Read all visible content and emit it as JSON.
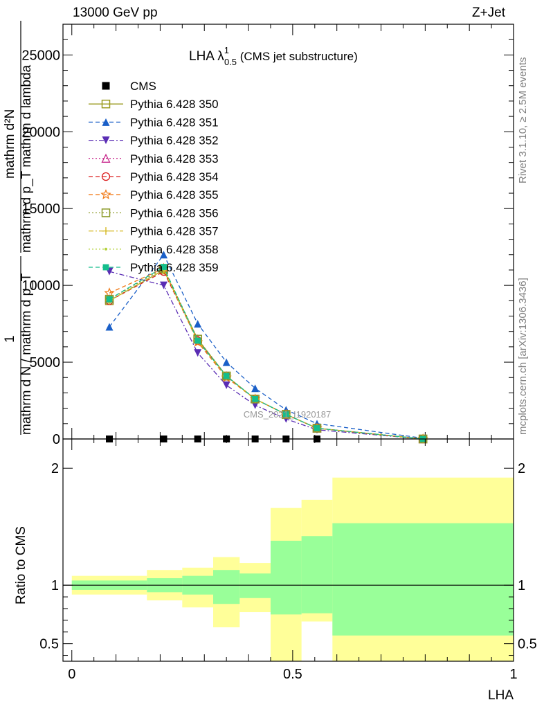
{
  "header": {
    "left": "13000 GeV pp",
    "right": "Z+Jet"
  },
  "side": {
    "rivet": "Rivet 3.1.10, ≥ 2.5M events",
    "mcplots": "mcplots.cern.ch [arXiv:1306.3436]"
  },
  "watermark": "CMS_2021_I1920187",
  "plot_title": {
    "main": "LHA λ",
    "sup": "1",
    "sub": "0.5",
    "tail": " (CMS jet substructure)"
  },
  "ylabel_main": {
    "numerator": "mathrm d²N",
    "denominator": "mathrm d p_T mathrm d lambda",
    "one": "1",
    "lower": "mathrm d N / mathrm d p_T",
    "full": "1 / mathrm dN / mathrm d p_T  mathrm d²N / mathrm d p_T mathrm d lambda"
  },
  "ylabel_ratio": "Ratio to CMS",
  "xlabel": "LHA",
  "chart_data": [
    {
      "type": "line",
      "title": "LHA λ^1_0.5 (CMS jet substructure)",
      "ylim": [
        0,
        27000
      ],
      "xlim": [
        -0.02,
        1.0
      ],
      "yticks": [
        0,
        5000,
        10000,
        15000,
        20000,
        25000
      ],
      "ytick_labels": [
        "0",
        "5000",
        "10000",
        "15000",
        "20000",
        "25000"
      ],
      "legend_position": "top-left",
      "x": [
        0.085,
        0.208,
        0.285,
        0.35,
        0.415,
        0.485,
        0.555,
        0.795
      ],
      "series": [
        {
          "name": "CMS",
          "color": "#000000",
          "marker": "square-filled",
          "dash": "none",
          "values": [
            0,
            0,
            0,
            0,
            0,
            0,
            0,
            0
          ]
        },
        {
          "name": "Pythia 6.428 350",
          "color": "#9a9a1e",
          "marker": "square-open",
          "dash": "solid",
          "values": [
            9000,
            11000,
            6500,
            4100,
            2600,
            1600,
            700,
            0
          ]
        },
        {
          "name": "Pythia 6.428 351",
          "color": "#1a5fc8",
          "marker": "triangle-up-filled",
          "dash": "dashed",
          "values": [
            7300,
            12000,
            7500,
            5000,
            3300,
            1900,
            1000,
            50
          ]
        },
        {
          "name": "Pythia 6.428 352",
          "color": "#5a2db4",
          "marker": "triangle-down-filled",
          "dash": "dashdot",
          "values": [
            10900,
            10000,
            5600,
            3500,
            2200,
            1300,
            600,
            0
          ]
        },
        {
          "name": "Pythia 6.428 353",
          "color": "#c8288c",
          "marker": "triangle-up-open",
          "dash": "dotted",
          "values": [
            9100,
            11100,
            6500,
            4100,
            2600,
            1600,
            700,
            0
          ]
        },
        {
          "name": "Pythia 6.428 354",
          "color": "#dc1e1e",
          "marker": "circle-open",
          "dash": "dashed",
          "values": [
            9000,
            10900,
            6400,
            4100,
            2600,
            1600,
            700,
            0
          ]
        },
        {
          "name": "Pythia 6.428 355",
          "color": "#f07814",
          "marker": "star-open",
          "dash": "dashed",
          "values": [
            9500,
            11100,
            6300,
            4000,
            2600,
            1600,
            700,
            0
          ]
        },
        {
          "name": "Pythia 6.428 356",
          "color": "#8c9a28",
          "marker": "square-open",
          "dash": "dotted",
          "values": [
            9100,
            11100,
            6500,
            4100,
            2600,
            1600,
            700,
            0
          ]
        },
        {
          "name": "Pythia 6.428 357",
          "color": "#d2b414",
          "marker": "cross",
          "dash": "dashdot",
          "values": [
            9000,
            11000,
            6400,
            4100,
            2600,
            1600,
            700,
            0
          ]
        },
        {
          "name": "Pythia 6.428 358",
          "color": "#b4d23c",
          "marker": "dot",
          "dash": "dotted",
          "values": [
            9000,
            11000,
            6400,
            4100,
            2600,
            1600,
            700,
            0
          ]
        },
        {
          "name": "Pythia 6.428 359",
          "color": "#14be8c",
          "marker": "square-filled-small",
          "dash": "dashed",
          "values": [
            9100,
            11200,
            6400,
            4100,
            2600,
            1600,
            700,
            0
          ]
        }
      ]
    },
    {
      "type": "area",
      "ylabel": "Ratio to CMS",
      "xlabel": "LHA",
      "ylim": [
        0.35,
        2.25
      ],
      "xlim": [
        -0.02,
        1.0
      ],
      "yticks": [
        0.5,
        1,
        2
      ],
      "ytick_labels": [
        "0.5",
        "1",
        "2"
      ],
      "xticks": [
        0,
        0.5,
        1
      ],
      "xtick_labels": [
        "0",
        "0.5",
        "1"
      ],
      "reference": 1,
      "bin_edges": [
        0,
        0.17,
        0.25,
        0.32,
        0.38,
        0.45,
        0.52,
        0.59,
        1.0
      ],
      "stat_band": {
        "color": "#99ff99",
        "lo": [
          0.96,
          0.94,
          0.92,
          0.84,
          0.89,
          0.75,
          0.76,
          0.57
        ],
        "hi": [
          1.04,
          1.06,
          1.08,
          1.13,
          1.1,
          1.38,
          1.42,
          1.53
        ]
      },
      "total_band": {
        "color": "#ffff99",
        "lo": [
          0.92,
          0.87,
          0.81,
          0.64,
          0.77,
          0.3,
          0.69,
          0.3
        ],
        "hi": [
          1.08,
          1.13,
          1.15,
          1.24,
          1.19,
          1.66,
          1.73,
          1.92
        ]
      }
    }
  ]
}
